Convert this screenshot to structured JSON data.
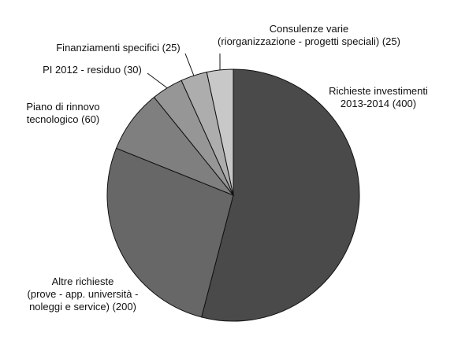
{
  "chart_data": {
    "type": "pie",
    "title": "",
    "start_angle_deg": 0,
    "direction": "clockwise",
    "slices": [
      {
        "label_lines": [
          "Richieste investimenti",
          "2013-2014 (400)"
        ],
        "value": 400,
        "color": "#4a4a4a"
      },
      {
        "label_lines": [
          "Altre richieste",
          "(prove - app. università -",
          "noleggi e service) (200)"
        ],
        "value": 200,
        "color": "#676767"
      },
      {
        "label_lines": [
          "Piano di rinnovo",
          "tecnologico (60)"
        ],
        "value": 60,
        "color": "#7f7f7f"
      },
      {
        "label_lines": [
          "PI 2012 - residuo (30)"
        ],
        "value": 30,
        "color": "#969696"
      },
      {
        "label_lines": [
          "Finanziamenti specifici (25)"
        ],
        "value": 25,
        "color": "#adadad"
      },
      {
        "label_lines": [
          "Consulenze varie",
          "(riorganizzazione - progetti speciali) (25)"
        ],
        "value": 25,
        "color": "#c8c8c8"
      }
    ]
  }
}
